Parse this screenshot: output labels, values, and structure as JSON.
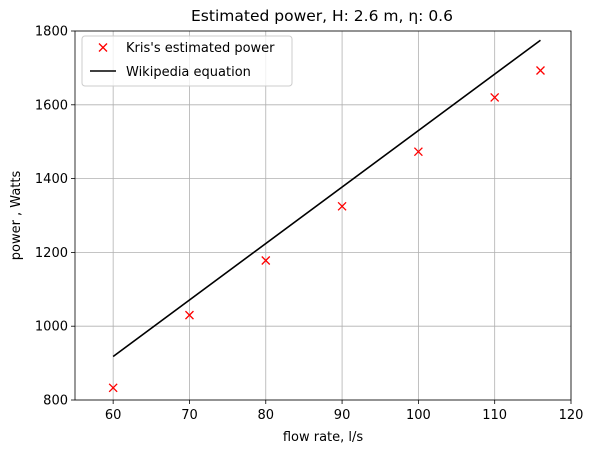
{
  "chart_data": {
    "type": "line",
    "title": "Estimated power, H: 2.6 m, η: 0.6",
    "xlabel": "flow rate, l/s",
    "ylabel": "power , Watts",
    "xlim": [
      55,
      120
    ],
    "ylim": [
      800,
      1800
    ],
    "xticks": [
      60,
      70,
      80,
      90,
      100,
      110,
      120
    ],
    "yticks": [
      800,
      1000,
      1200,
      1400,
      1600,
      1800
    ],
    "grid": true,
    "legend_position": "top-left",
    "series": [
      {
        "name": "Kris's estimated power",
        "kind": "scatter",
        "marker": "x",
        "color": "#ff0000",
        "x": [
          60,
          70,
          80,
          90,
          100,
          110,
          116
        ],
        "y": [
          833,
          1030,
          1178,
          1325,
          1473,
          1620,
          1693
        ]
      },
      {
        "name": "Wikipedia equation",
        "kind": "line",
        "color": "#000000",
        "x": [
          60,
          116
        ],
        "y": [
          918,
          1775
        ]
      }
    ]
  }
}
